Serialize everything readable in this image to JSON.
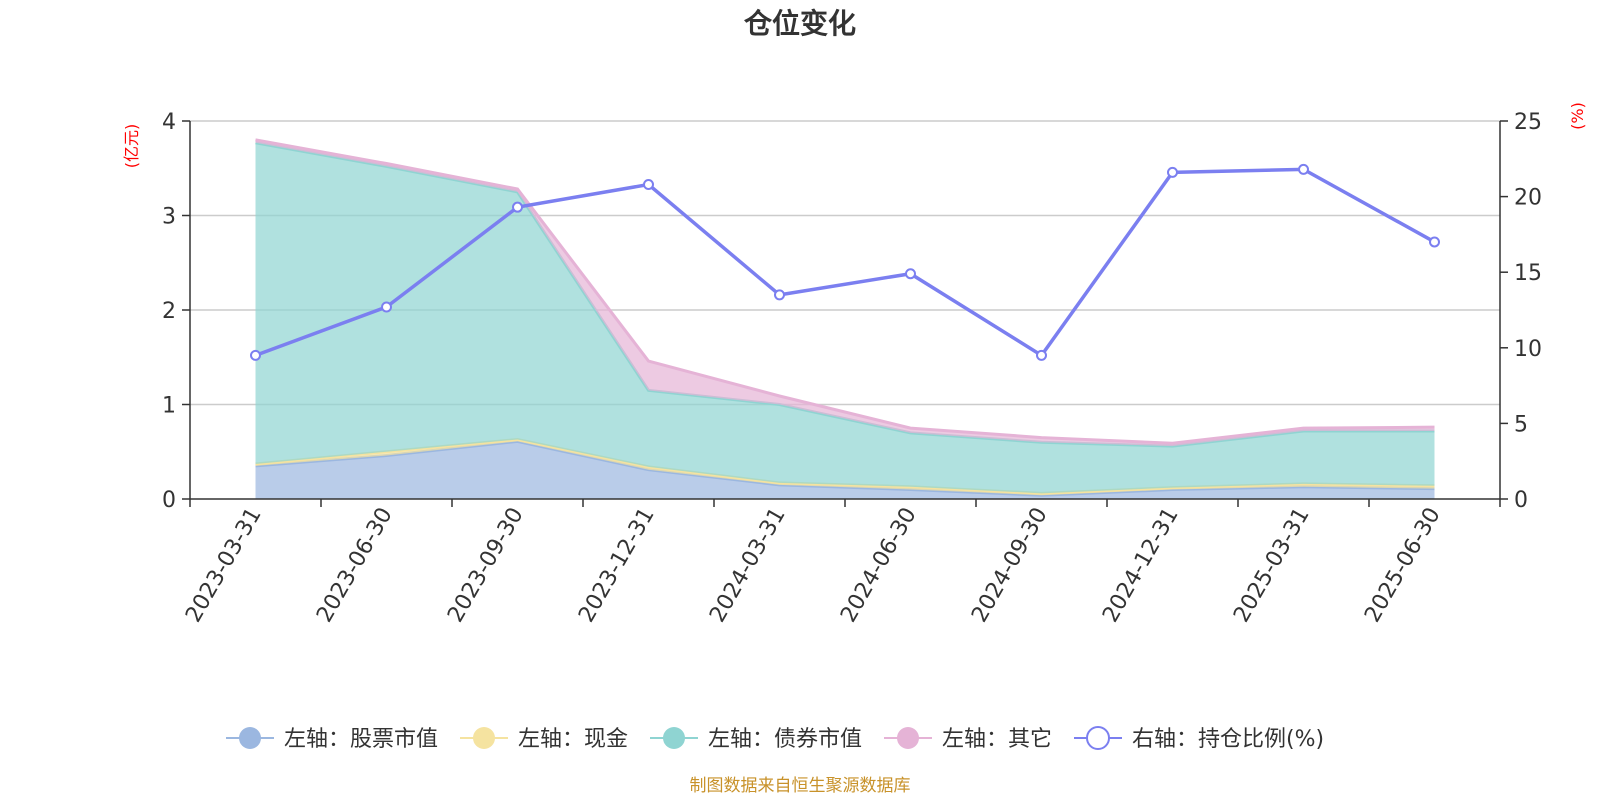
{
  "chart_data": {
    "type": "area",
    "title": "仓位变化",
    "left_unit": "(亿元)",
    "right_unit": "(%)",
    "categories": [
      "2023-03-31",
      "2023-06-30",
      "2023-09-30",
      "2023-12-31",
      "2024-03-31",
      "2024-06-30",
      "2024-09-30",
      "2024-12-31",
      "2025-03-31",
      "2025-06-30"
    ],
    "left_axis": {
      "min": 0,
      "max": 4,
      "ticks": [
        "0",
        "1",
        "2",
        "3",
        "4"
      ]
    },
    "right_axis": {
      "min": 0,
      "max": 25,
      "ticks": [
        "0",
        "5",
        "10",
        "15",
        "20",
        "25"
      ]
    },
    "stacked_series": [
      {
        "name": "左轴：股票市值",
        "color": "#9bb7e0",
        "values": [
          0.35,
          0.46,
          0.61,
          0.31,
          0.15,
          0.1,
          0.04,
          0.1,
          0.13,
          0.11
        ]
      },
      {
        "name": "左轴：现金",
        "color": "#f5e3a0",
        "values": [
          0.02,
          0.04,
          0.02,
          0.03,
          0.02,
          0.03,
          0.02,
          0.02,
          0.03,
          0.03
        ]
      },
      {
        "name": "左轴：债券市值",
        "color": "#8fd4d2",
        "values": [
          3.4,
          3.02,
          2.62,
          0.81,
          0.83,
          0.57,
          0.54,
          0.44,
          0.56,
          0.58
        ]
      },
      {
        "name": "左轴：其它",
        "color": "#e5b3d6",
        "values": [
          0.03,
          0.03,
          0.03,
          0.31,
          0.09,
          0.05,
          0.05,
          0.03,
          0.03,
          0.04
        ]
      }
    ],
    "line_series": {
      "name": "右轴：持仓比例(%)",
      "color": "#7b7ff0",
      "values": [
        9.5,
        12.7,
        19.3,
        20.8,
        13.5,
        14.9,
        9.5,
        21.6,
        21.8,
        17.0
      ]
    },
    "legend_position": "bottom",
    "grid": true
  },
  "source_note": "制图数据来自恒生聚源数据库"
}
